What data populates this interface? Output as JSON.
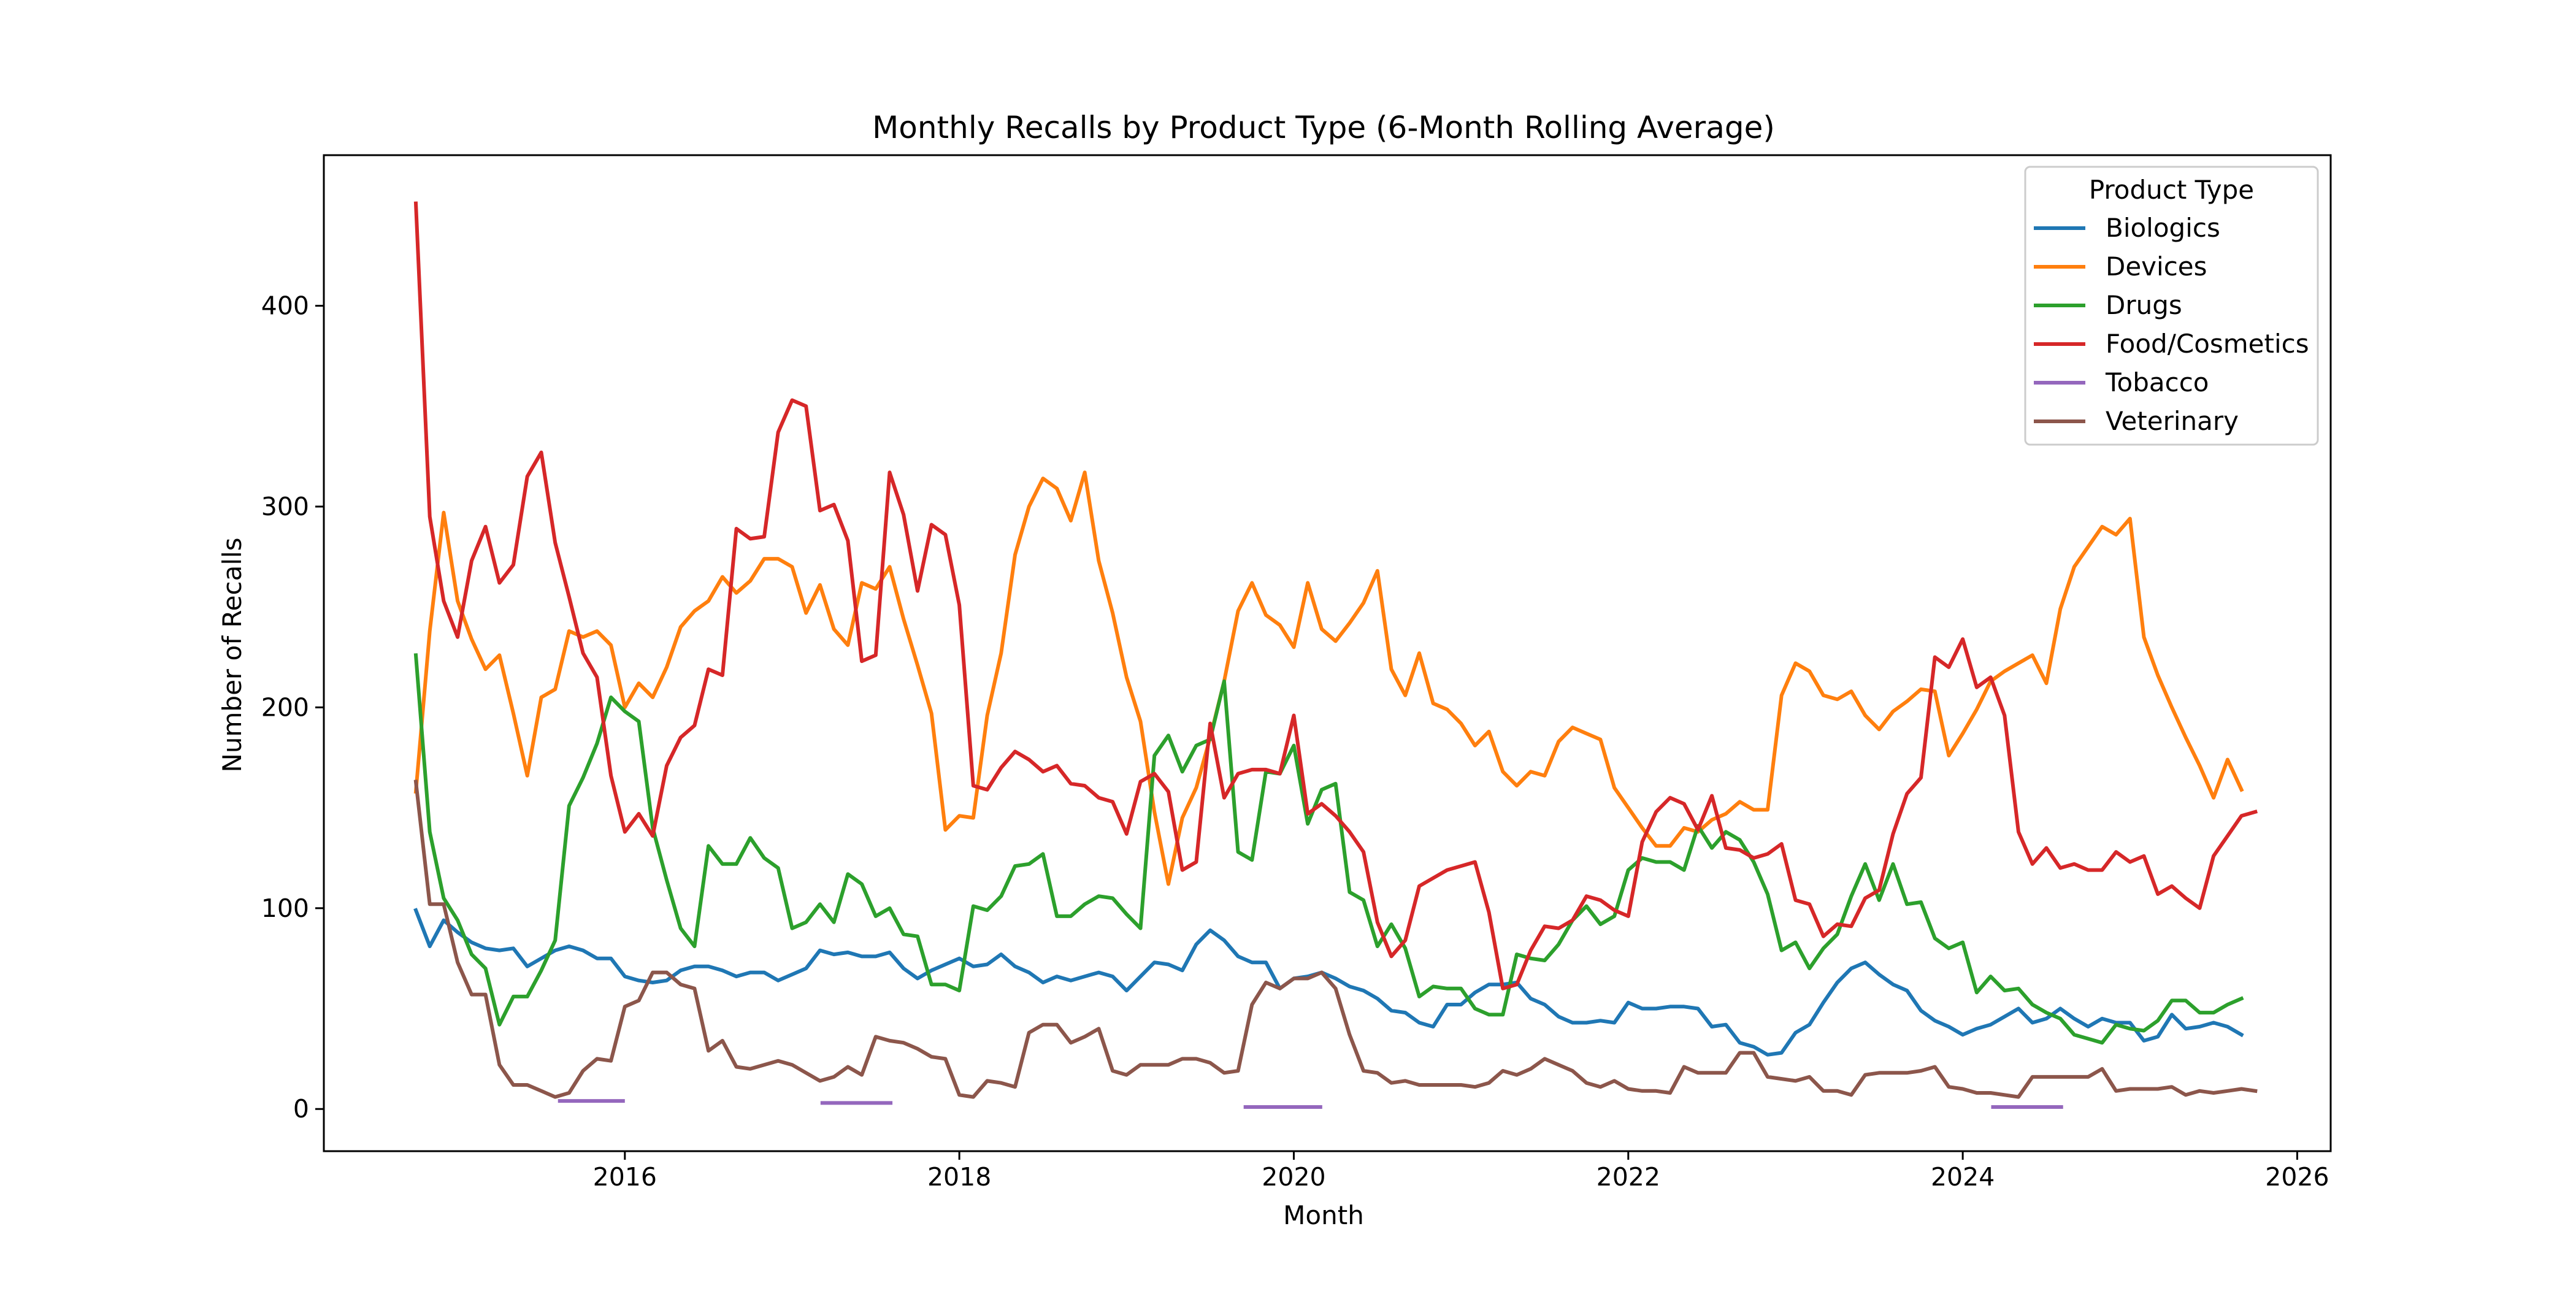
{
  "chart_data": {
    "type": "line",
    "title": "Monthly Recalls by Product Type (6-Month Rolling Average)",
    "xlabel": "Month",
    "ylabel": "Number of Recalls",
    "x_range": [
      2014.2,
      2026.2
    ],
    "ylim": [
      -21,
      475
    ],
    "x_ticks": [
      2016,
      2018,
      2020,
      2022,
      2024,
      2026
    ],
    "x_tick_labels": [
      "2016",
      "2018",
      "2020",
      "2022",
      "2024",
      "2026"
    ],
    "y_ticks": [
      0,
      100,
      200,
      300,
      400
    ],
    "y_tick_labels": [
      "0",
      "100",
      "200",
      "300",
      "400"
    ],
    "grid": false,
    "legend": {
      "title": "Product Type",
      "placement": "top-right",
      "entries": [
        "Biologics",
        "Devices",
        "Drugs",
        "Food/Cosmetics",
        "Tobacco",
        "Veterinary"
      ]
    },
    "x_start": 2014.75,
    "x_step_months": 1,
    "series": [
      {
        "name": "Biologics",
        "color": "#1f77b4",
        "values": [
          99,
          81,
          94,
          88,
          83,
          80,
          79,
          80,
          71,
          75,
          79,
          81,
          79,
          75,
          75,
          66,
          64,
          63,
          64,
          69,
          71,
          71,
          69,
          66,
          68,
          68,
          64,
          67,
          70,
          79,
          77,
          78,
          76,
          76,
          78,
          70,
          65,
          69,
          72,
          75,
          71,
          72,
          77,
          71,
          68,
          63,
          66,
          64,
          66,
          68,
          66,
          59,
          66,
          73,
          72,
          69,
          82,
          89,
          84,
          76,
          73,
          73,
          60,
          65,
          66,
          68,
          65,
          61,
          59,
          55,
          49,
          48,
          43,
          41,
          52,
          52,
          58,
          62,
          62,
          63,
          55,
          52,
          46,
          43,
          43,
          44,
          43,
          53,
          50,
          50,
          51,
          51,
          50,
          41,
          42,
          33,
          31,
          27,
          28,
          38,
          42,
          53,
          63,
          70,
          73,
          67,
          62,
          59,
          49,
          44,
          41,
          37,
          40,
          42,
          46,
          50,
          43,
          45,
          50,
          45,
          41,
          45,
          43,
          43,
          34,
          36,
          47,
          40,
          41,
          43,
          41,
          37
        ]
      },
      {
        "name": "Devices",
        "color": "#ff7f0e",
        "values": [
          158,
          238,
          297,
          253,
          234,
          219,
          226,
          197,
          166,
          205,
          209,
          238,
          235,
          238,
          231,
          200,
          212,
          205,
          220,
          240,
          248,
          253,
          265,
          257,
          263,
          274,
          274,
          270,
          247,
          261,
          239,
          231,
          262,
          259,
          270,
          244,
          221,
          197,
          139,
          146,
          145,
          196,
          227,
          276,
          300,
          314,
          309,
          293,
          317,
          273,
          247,
          215,
          193,
          148,
          112,
          145,
          160,
          185,
          213,
          248,
          262,
          246,
          241,
          230,
          262,
          239,
          233,
          242,
          252,
          268,
          219,
          206,
          227,
          202,
          199,
          192,
          181,
          188,
          168,
          161,
          168,
          166,
          183,
          190,
          187,
          184,
          160,
          150,
          140,
          131,
          131,
          140,
          138,
          144,
          147,
          153,
          149,
          149,
          206,
          222,
          218,
          206,
          204,
          208,
          196,
          189,
          198,
          203,
          209,
          208,
          176,
          187,
          199,
          213,
          218,
          222,
          226,
          212,
          249,
          270,
          280,
          290,
          286,
          294,
          235,
          216,
          200,
          185,
          171,
          155,
          174,
          159
        ]
      },
      {
        "name": "Drugs",
        "color": "#2ca02c",
        "values": [
          226,
          138,
          105,
          94,
          77,
          70,
          42,
          56,
          56,
          69,
          84,
          151,
          165,
          182,
          205,
          198,
          193,
          140,
          114,
          90,
          81,
          131,
          122,
          122,
          135,
          125,
          120,
          90,
          93,
          102,
          93,
          117,
          112,
          96,
          100,
          87,
          86,
          62,
          62,
          59,
          101,
          99,
          106,
          121,
          122,
          127,
          96,
          96,
          102,
          106,
          105,
          97,
          90,
          176,
          186,
          168,
          181,
          184,
          213,
          128,
          124,
          168,
          167,
          181,
          142,
          159,
          162,
          108,
          104,
          81,
          92,
          80,
          56,
          61,
          60,
          60,
          50,
          47,
          47,
          77,
          75,
          74,
          82,
          94,
          101,
          92,
          96,
          119,
          125,
          123,
          123,
          119,
          141,
          130,
          138,
          134,
          123,
          107,
          79,
          83,
          70,
          80,
          87,
          106,
          122,
          104,
          122,
          102,
          103,
          85,
          80,
          83,
          58,
          66,
          59,
          60,
          52,
          48,
          45,
          37,
          35,
          33,
          42,
          40,
          39,
          44,
          54,
          54,
          48,
          48,
          52,
          55
        ]
      },
      {
        "name": "Food/Cosmetics",
        "color": "#d62728",
        "values": [
          451,
          295,
          253,
          235,
          273,
          290,
          262,
          271,
          315,
          327,
          282,
          255,
          227,
          215,
          166,
          138,
          147,
          136,
          171,
          185,
          191,
          219,
          216,
          289,
          284,
          285,
          337,
          353,
          350,
          298,
          301,
          283,
          223,
          226,
          317,
          296,
          258,
          291,
          286,
          251,
          161,
          159,
          170,
          178,
          174,
          168,
          171,
          162,
          161,
          155,
          153,
          137,
          163,
          167,
          158,
          119,
          123,
          192,
          155,
          167,
          169,
          169,
          167,
          196,
          147,
          152,
          146,
          138,
          128,
          93,
          76,
          84,
          111,
          115,
          119,
          121,
          123,
          98,
          60,
          62,
          79,
          91,
          90,
          94,
          106,
          104,
          99,
          96,
          133,
          148,
          155,
          152,
          139,
          156,
          130,
          129,
          125,
          127,
          132,
          104,
          102,
          86,
          92,
          91,
          105,
          109,
          137,
          157,
          165,
          225,
          220,
          234,
          210,
          215,
          196,
          138,
          122,
          130,
          120,
          122,
          119,
          119,
          128,
          123,
          126,
          107,
          111,
          105,
          100,
          126,
          136,
          146,
          148
        ]
      },
      {
        "name": "Tobacco",
        "color": "#9467bd",
        "segments": [
          {
            "start": 2015.6,
            "end": 2016.0,
            "value": 4
          },
          {
            "start": 2017.17,
            "end": 2017.6,
            "value": 3
          },
          {
            "start": 2019.7,
            "end": 2020.17,
            "value": 1
          },
          {
            "start": 2024.17,
            "end": 2024.6,
            "value": 1
          }
        ]
      },
      {
        "name": "Veterinary",
        "color": "#8c564b",
        "values": [
          163,
          102,
          102,
          73,
          57,
          57,
          22,
          12,
          12,
          9,
          6,
          8,
          19,
          25,
          24,
          51,
          54,
          68,
          68,
          62,
          60,
          29,
          34,
          21,
          20,
          22,
          24,
          22,
          18,
          14,
          16,
          21,
          17,
          36,
          34,
          33,
          30,
          26,
          25,
          7,
          6,
          14,
          13,
          11,
          38,
          42,
          42,
          33,
          36,
          40,
          19,
          17,
          22,
          22,
          22,
          25,
          25,
          23,
          18,
          19,
          52,
          63,
          60,
          65,
          65,
          68,
          60,
          37,
          19,
          18,
          13,
          14,
          12,
          12,
          12,
          12,
          11,
          13,
          19,
          17,
          20,
          25,
          22,
          19,
          13,
          11,
          14,
          10,
          9,
          9,
          8,
          21,
          18,
          18,
          18,
          28,
          28,
          16,
          15,
          14,
          16,
          9,
          9,
          7,
          17,
          18,
          18,
          18,
          19,
          21,
          11,
          10,
          8,
          8,
          7,
          6,
          16,
          16,
          16,
          16,
          16,
          20,
          9,
          10,
          10,
          10,
          11,
          7,
          9,
          8,
          9,
          10,
          9
        ]
      }
    ]
  }
}
